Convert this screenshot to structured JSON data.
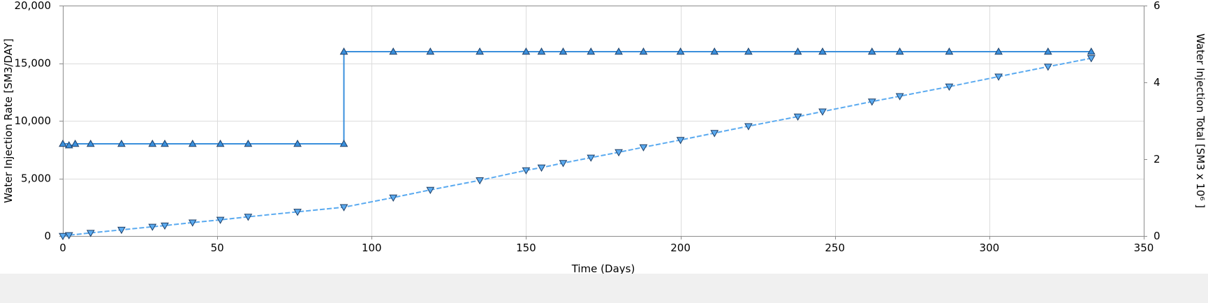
{
  "chart_data": {
    "type": "line",
    "xlabel": "Time (Days)",
    "ylabel_left": "Water Injection Rate [SM3/DAY]",
    "ylabel_right": "Water Injection Total [SM3 x 10⁶ ]",
    "xlim": [
      0,
      350
    ],
    "ylim_left": [
      0,
      20000
    ],
    "ylim_right": [
      0,
      6
    ],
    "x_ticks": [
      0,
      50,
      100,
      150,
      200,
      250,
      300,
      350
    ],
    "y_left_ticks": [
      0,
      5000,
      10000,
      15000,
      20000
    ],
    "y_right_ticks": [
      0,
      2,
      4,
      6
    ],
    "grid": true,
    "series": [
      {
        "axis": "left",
        "line_style": "solid",
        "marker": "triangle-up",
        "color": "#3a8fdc",
        "step": true,
        "points": [
          [
            0,
            8000
          ],
          [
            2,
            7870
          ],
          [
            4,
            8000
          ],
          [
            9,
            8000
          ],
          [
            19,
            8000
          ],
          [
            29,
            8000
          ],
          [
            33,
            8000
          ],
          [
            42,
            8000
          ],
          [
            51,
            8000
          ],
          [
            60,
            8000
          ],
          [
            76,
            8000
          ],
          [
            91,
            8000
          ],
          [
            91,
            16000
          ],
          [
            107,
            16000
          ],
          [
            119,
            16000
          ],
          [
            135,
            16000
          ],
          [
            150,
            16000
          ],
          [
            155,
            16000
          ],
          [
            162,
            16000
          ],
          [
            171,
            16000
          ],
          [
            180,
            16000
          ],
          [
            188,
            16000
          ],
          [
            200,
            16000
          ],
          [
            211,
            16000
          ],
          [
            222,
            16000
          ],
          [
            238,
            16000
          ],
          [
            246,
            16000
          ],
          [
            262,
            16000
          ],
          [
            271,
            16000
          ],
          [
            287,
            16000
          ],
          [
            303,
            16000
          ],
          [
            319,
            16000
          ],
          [
            333,
            16000
          ]
        ]
      },
      {
        "axis": "right",
        "line_style": "dashed",
        "marker": "triangle-down",
        "color": "#5aaaf0",
        "step": false,
        "points": [
          [
            0,
            0.0
          ],
          [
            2,
            0.02
          ],
          [
            9,
            0.08
          ],
          [
            19,
            0.16
          ],
          [
            29,
            0.24
          ],
          [
            33,
            0.27
          ],
          [
            42,
            0.35
          ],
          [
            51,
            0.42
          ],
          [
            60,
            0.5
          ],
          [
            76,
            0.63
          ],
          [
            91,
            0.75
          ],
          [
            107,
            1.0
          ],
          [
            119,
            1.2
          ],
          [
            135,
            1.45
          ],
          [
            150,
            1.71
          ],
          [
            155,
            1.78
          ],
          [
            162,
            1.9
          ],
          [
            171,
            2.04
          ],
          [
            180,
            2.18
          ],
          [
            188,
            2.31
          ],
          [
            200,
            2.5
          ],
          [
            211,
            2.68
          ],
          [
            222,
            2.86
          ],
          [
            238,
            3.11
          ],
          [
            246,
            3.24
          ],
          [
            262,
            3.5
          ],
          [
            271,
            3.64
          ],
          [
            287,
            3.89
          ],
          [
            303,
            4.15
          ],
          [
            319,
            4.41
          ],
          [
            333,
            4.63
          ]
        ]
      }
    ]
  }
}
